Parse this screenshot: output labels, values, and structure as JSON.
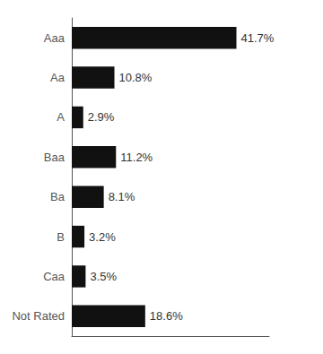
{
  "chart_data": {
    "type": "bar",
    "orientation": "horizontal",
    "categories": [
      "Aaa",
      "Aa",
      "A",
      "Baa",
      "Ba",
      "B",
      "Caa",
      "Not Rated"
    ],
    "values": [
      41.7,
      10.8,
      2.9,
      11.2,
      8.1,
      3.2,
      3.5,
      18.6
    ],
    "value_labels": [
      "41.7%",
      "10.8%",
      "2.9%",
      "11.2%",
      "8.1%",
      "3.2%",
      "3.5%",
      "18.6%"
    ],
    "color": "#111111",
    "xlim": [
      0,
      50
    ],
    "grid": false,
    "tick_labels": false,
    "data_labels": true
  }
}
